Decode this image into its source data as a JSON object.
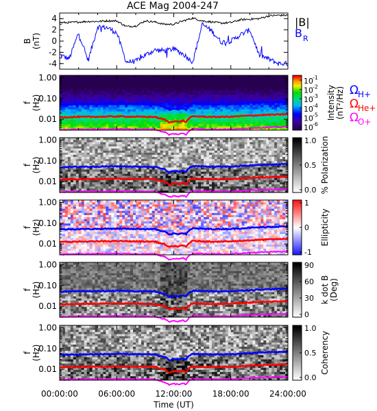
{
  "title": "ACE Mag 2004-247",
  "colors": {
    "b_total": "#000000",
    "b_r": "#0000ff",
    "omega_h": "#0000ff",
    "omega_he": "#ff0000",
    "omega_o": "#ff00ff"
  },
  "legend_top": {
    "b_total": "|B|",
    "b_r_base": "B",
    "b_r_sub": "R"
  },
  "legend_gyro": [
    {
      "symbol": "Ω",
      "sub": "H+",
      "color": "#0000ff"
    },
    {
      "symbol": "Ω",
      "sub": "He+",
      "color": "#ff0000"
    },
    {
      "symbol": "Ω",
      "sub": "O+",
      "color": "#ff00ff"
    }
  ],
  "xaxis": {
    "label": "Time (UT)",
    "ticks": [
      "00:00:00",
      "06:00:00",
      "12:00:00",
      "18:00:00",
      "24:00:00"
    ],
    "range_hours": [
      0,
      24
    ]
  },
  "chart_data": [
    {
      "type": "line",
      "panel": "field",
      "ylabel": "B",
      "yunit": "(nT)",
      "ylim": [
        -5,
        5
      ],
      "yticks": [
        "-4",
        "-2",
        "0",
        "2",
        "4"
      ],
      "x_hours": [
        0,
        1,
        2,
        3,
        4,
        5,
        6,
        7,
        8,
        9,
        10,
        11,
        12,
        13,
        14,
        15,
        16,
        17,
        18,
        19,
        20,
        21,
        22,
        23,
        24
      ],
      "series": [
        {
          "name": "|B|",
          "values": [
            3.3,
            3.3,
            3.4,
            3.5,
            3.5,
            3.6,
            3.6,
            2.6,
            2.7,
            3.6,
            3.4,
            3.0,
            3.0,
            3.6,
            4.1,
            3.6,
            3.4,
            3.2,
            3.3,
            3.8,
            3.9,
            4.0,
            4.5,
            4.6,
            4.6
          ]
        },
        {
          "name": "B_R",
          "values": [
            -2.4,
            -3.2,
            1.5,
            -3.5,
            2.6,
            2.4,
            1.5,
            -3.7,
            -3.6,
            -2.5,
            -1.6,
            -1.7,
            -1.4,
            -2.3,
            -3.7,
            3.0,
            1.8,
            -0.2,
            0.0,
            1.1,
            2.0,
            -2.5,
            -3.2,
            -4.0,
            -4.0
          ]
        }
      ]
    },
    {
      "type": "heatmap",
      "panel": "power-spectrum",
      "ylabel": "f",
      "yunit": "(Hz)",
      "ylog": true,
      "ylim": [
        0.003,
        1.3
      ],
      "yticks": [
        "1.00",
        "0.10",
        "0.01"
      ],
      "colorbar": {
        "label": "Intensity",
        "unit": "(nT²/Hz)",
        "ticks_exp": [
          "-1",
          "-2",
          "-3",
          "-4",
          "-5",
          "-6"
        ],
        "scale": "rainbow"
      }
    },
    {
      "type": "heatmap",
      "panel": "polarization",
      "ylabel": "f",
      "yunit": "(Hz)",
      "ylog": true,
      "ylim": [
        0.003,
        1.3
      ],
      "yticks": [
        "1.00",
        "0.10",
        "0.01"
      ],
      "colorbar": {
        "label": "% Polarization",
        "ticks": [
          "1.0",
          "0.5",
          "0.0"
        ],
        "scale": "gray"
      }
    },
    {
      "type": "heatmap",
      "panel": "ellipticity",
      "ylabel": "f",
      "yunit": "(Hz)",
      "ylog": true,
      "ylim": [
        0.003,
        1.3
      ],
      "yticks": [
        "1.00",
        "0.10",
        "0.01"
      ],
      "colorbar": {
        "label": "Ellipticity",
        "ticks": [
          "1",
          "0",
          "-1"
        ],
        "scale": "bwr"
      }
    },
    {
      "type": "heatmap",
      "panel": "k-dot-b",
      "ylabel": "f",
      "yunit": "(Hz)",
      "ylog": true,
      "ylim": [
        0.003,
        1.3
      ],
      "yticks": [
        "1.00",
        "0.10",
        "0.01"
      ],
      "colorbar": {
        "label": "k dot B",
        "unit": "(Deg)",
        "ticks": [
          "90",
          "60",
          "30",
          "0"
        ],
        "scale": "gray"
      }
    },
    {
      "type": "heatmap",
      "panel": "coherency",
      "ylabel": "f",
      "yunit": "(Hz)",
      "ylog": true,
      "ylim": [
        0.003,
        1.3
      ],
      "yticks": [
        "1.00",
        "0.10",
        "0.01"
      ],
      "colorbar": {
        "label": "Coherency",
        "ticks": [
          "1.0",
          "0.5",
          "0.0"
        ],
        "scale": "gray"
      }
    }
  ],
  "gyrofrequency_hz": {
    "x_hours": [
      0,
      2,
      4,
      6,
      8,
      10,
      10.8,
      11,
      11.5,
      12,
      12.5,
      13,
      13.3,
      13.6,
      14,
      16,
      18,
      20,
      22,
      24
    ],
    "omega_h": [
      0.05,
      0.052,
      0.053,
      0.055,
      0.053,
      0.052,
      0.04,
      0.04,
      0.028,
      0.032,
      0.03,
      0.034,
      0.029,
      0.045,
      0.056,
      0.052,
      0.053,
      0.06,
      0.066,
      0.07
    ],
    "omega_he": [
      0.0125,
      0.013,
      0.0133,
      0.0138,
      0.0133,
      0.013,
      0.01,
      0.01,
      0.007,
      0.008,
      0.0075,
      0.0085,
      0.0072,
      0.011,
      0.014,
      0.013,
      0.0133,
      0.015,
      0.0165,
      0.0175
    ],
    "omega_o": [
      0.0031,
      0.0033,
      0.0033,
      0.0034,
      0.0033,
      0.0033,
      0.0025,
      0.0025,
      0.0018,
      0.002,
      0.0019,
      0.0021,
      0.0018,
      0.0028,
      0.0035,
      0.0033,
      0.0033,
      0.0038,
      0.0041,
      0.0044
    ]
  }
}
